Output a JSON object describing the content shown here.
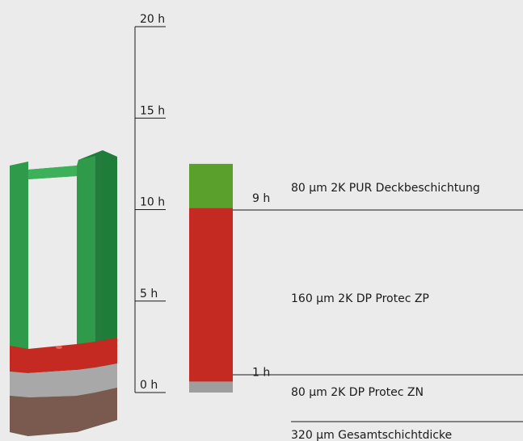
{
  "scale": {
    "ticks": [
      {
        "value": 20,
        "label": "20 h"
      },
      {
        "value": 15,
        "label": "15 h"
      },
      {
        "value": 10,
        "label": "10 h"
      },
      {
        "value": 5,
        "label": "5 h"
      },
      {
        "value": 0,
        "label": "0 h"
      }
    ],
    "max": 20
  },
  "bar": {
    "segments": [
      {
        "name": "zinc-primer",
        "from": 0,
        "to": 0.6,
        "color": "#9e9e9e"
      },
      {
        "name": "dp-protec-zp",
        "from": 0.6,
        "to": 10.1,
        "color": "#c42a22"
      },
      {
        "name": "pur-topcoat",
        "from": 10.1,
        "to": 12.5,
        "color": "#5aa02c"
      }
    ],
    "markers": [
      {
        "value": 10.1,
        "label": "9 h"
      },
      {
        "value": 0.6,
        "label": "1 h"
      }
    ]
  },
  "layers": {
    "top": "80 µm 2K PUR Deckbeschichtung",
    "middle": "160 µm 2K DP Protec ZP",
    "bottom": "80 µm 2K DP Protec ZN",
    "total": "320 µm Gesamtschichtdicke"
  },
  "colors": {
    "background": "#ebebeb",
    "beam_green": "#2e9a4a",
    "beam_red": "#c42a22",
    "beam_grey": "#a8a8a8",
    "beam_rust": "#7a5a4e"
  }
}
